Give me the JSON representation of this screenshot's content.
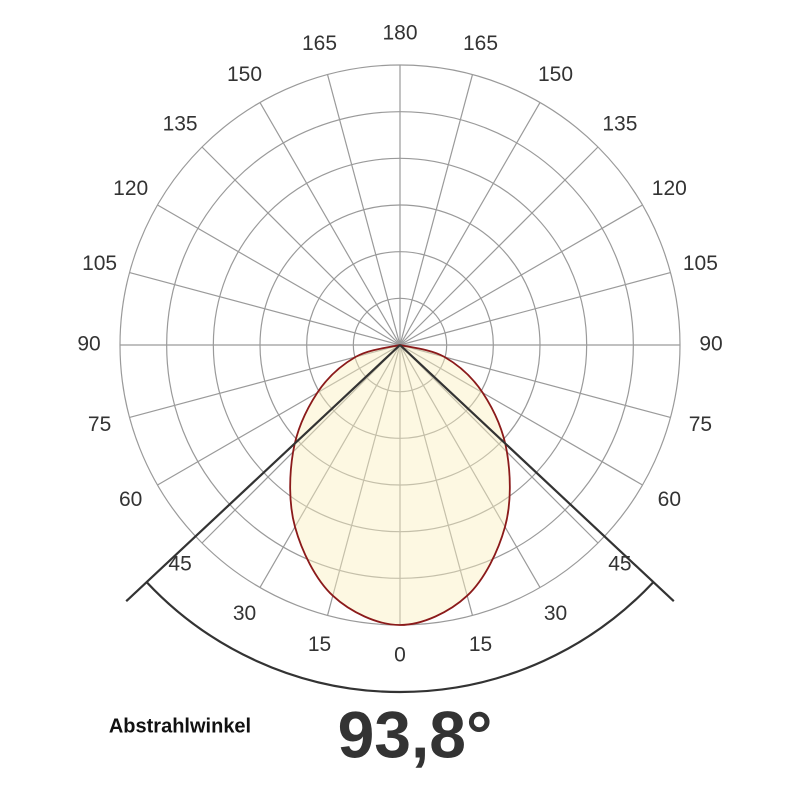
{
  "chart_data": {
    "type": "polar",
    "theta_ticks": [
      0,
      15,
      30,
      45,
      60,
      75,
      90,
      105,
      120,
      135,
      150,
      165,
      180
    ],
    "rlim": [
      0,
      1
    ],
    "series": [
      {
        "color": "#8b1a1a",
        "theta": [
          -90,
          -75,
          -60,
          -45,
          -30,
          -15,
          0,
          15,
          30,
          45,
          60,
          75,
          90
        ],
        "values": [
          0,
          0.164,
          0.341,
          0.54,
          0.75,
          0.927,
          1,
          0.927,
          0.75,
          0.54,
          0.341,
          0.164,
          0
        ]
      }
    ],
    "beam_label": "Abstrahlwinkel",
    "beam_angle": 93.8,
    "beam_angle_label": "93,8°"
  }
}
